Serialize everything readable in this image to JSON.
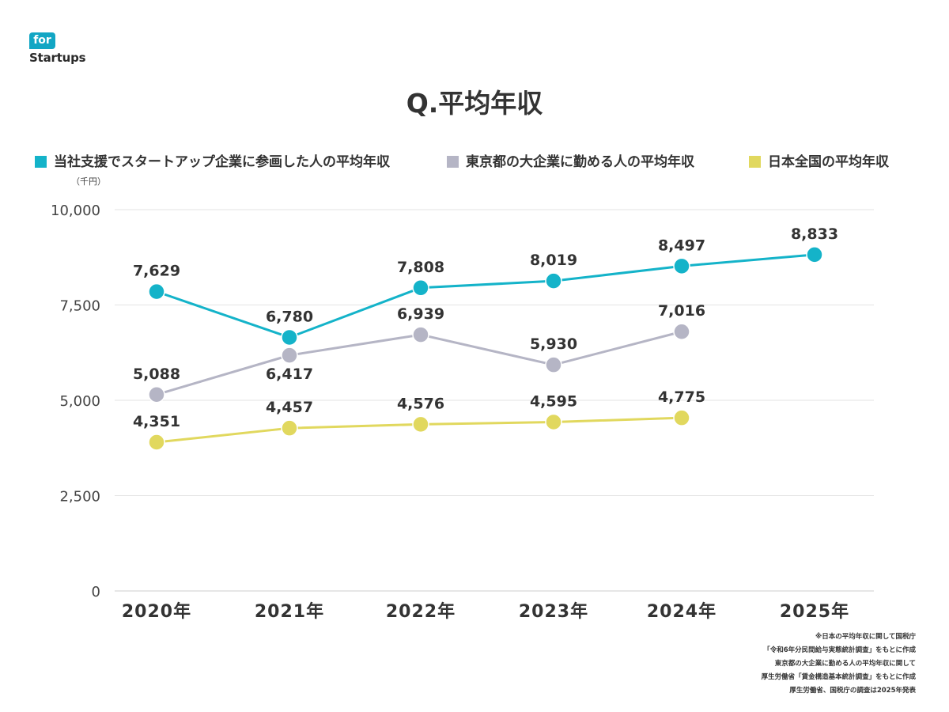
{
  "logo": {
    "top_text": "for",
    "bottom_text": "Startups"
  },
  "title": "Q.平均年収",
  "unit_label": "（千円）",
  "chart_data": {
    "type": "line",
    "title": "Q.平均年収",
    "xlabel": "",
    "ylabel": "（千円）",
    "categories": [
      "2020年",
      "2021年",
      "2022年",
      "2023年",
      "2024年",
      "2025年"
    ],
    "yticks": [
      "0",
      "2,500",
      "5,000",
      "7,500",
      "10,000"
    ],
    "ylim": [
      0,
      10000
    ],
    "grid": true,
    "legend_position": "top",
    "series": [
      {
        "name": "当社支援でスタートアップ企業に参画した人の平均年収",
        "color": "#14b3c9",
        "values": [
          7629,
          6780,
          7808,
          8019,
          8497,
          8833
        ],
        "plot_values": [
          7850,
          6650,
          7950,
          8130,
          8520,
          8820
        ],
        "labels": [
          "7,629",
          "6,780",
          "7,808",
          "8,019",
          "8,497",
          "8,833"
        ],
        "label_side": [
          "above",
          "above",
          "above",
          "above",
          "above",
          "above"
        ]
      },
      {
        "name": "東京都の大企業に勤める人の平均年収",
        "color": "#b5b5c5",
        "values": [
          5088,
          6417,
          6939,
          5930,
          7016,
          null
        ],
        "plot_values": [
          5150,
          6180,
          6720,
          5930,
          6800,
          null
        ],
        "labels": [
          "5,088",
          "6,417",
          "6,939",
          "5,930",
          "7,016",
          null
        ],
        "label_side": [
          "above",
          "below",
          "above",
          "above",
          "above",
          null
        ]
      },
      {
        "name": "日本全国の平均年収",
        "color": "#e1d85e",
        "values": [
          4351,
          4457,
          4576,
          4595,
          4775,
          null
        ],
        "plot_values": [
          3900,
          4270,
          4370,
          4430,
          4540,
          null
        ],
        "labels": [
          "4,351",
          "4,457",
          "4,576",
          "4,595",
          "4,775",
          null
        ],
        "label_side": [
          "above",
          "above",
          "above",
          "above",
          "above",
          null
        ]
      }
    ]
  },
  "footnote_lines": [
    "※日本の平均年収に関して国税庁",
    "「令和6年分民間給与実態統計調査」をもとに作成",
    "東京都の大企業に勤める人の平均年収に関して",
    "厚生労働省「賃金構造基本統計調査」をもとに作成",
    "厚生労働省、国税庁の調査は2025年発表"
  ]
}
